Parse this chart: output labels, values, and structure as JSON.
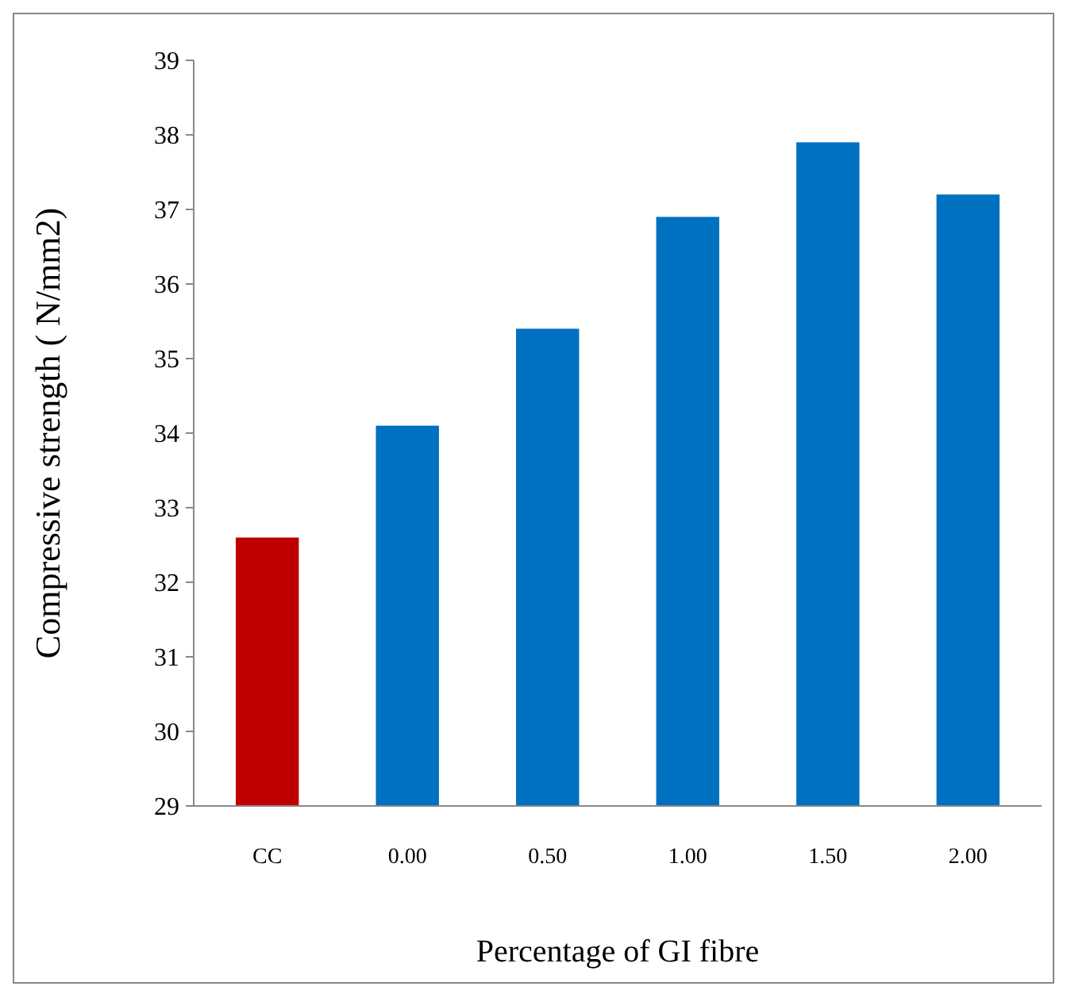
{
  "chart_data": {
    "type": "bar",
    "xlabel": "Percentage of GI fibre",
    "ylabel": "Compressive strength ( N/mm2)",
    "categories": [
      "CC",
      "0.00",
      "0.50",
      "1.00",
      "1.50",
      "2.00"
    ],
    "values": [
      32.6,
      34.1,
      35.4,
      36.9,
      37.9,
      37.2
    ],
    "colors": [
      "#c00000",
      "#0070c0",
      "#0070c0",
      "#0070c0",
      "#0070c0",
      "#0070c0"
    ],
    "ylim": [
      29,
      39
    ],
    "yticks": [
      29,
      30,
      31,
      32,
      33,
      34,
      35,
      36,
      37,
      38,
      39
    ],
    "grid": false
  }
}
